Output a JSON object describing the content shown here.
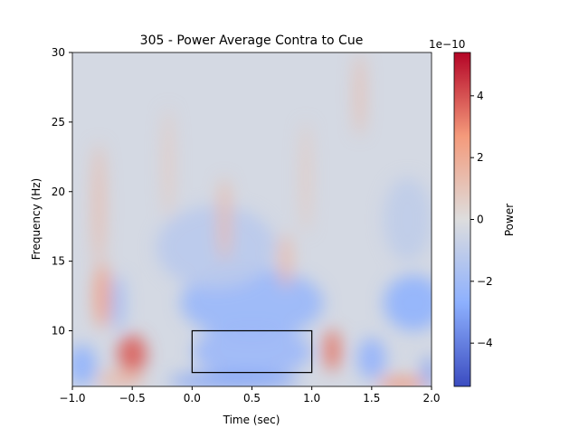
{
  "chart_data": {
    "type": "heatmap",
    "title": "305 - Power Average Contra to Cue",
    "xlabel": "Time (sec)",
    "ylabel": "Frequency (Hz)",
    "xlim": [
      -1.0,
      2.0
    ],
    "ylim": [
      6,
      30
    ],
    "xticks": [
      -1.0,
      -0.5,
      0.0,
      0.5,
      1.0,
      1.5,
      2.0
    ],
    "xtick_labels": [
      "−1.0",
      "−0.5",
      "0.0",
      "0.5",
      "1.0",
      "1.5",
      "2.0"
    ],
    "yticks": [
      10,
      15,
      20,
      25,
      30
    ],
    "ytick_labels": [
      "10",
      "15",
      "20",
      "25",
      "30"
    ],
    "colormap": "coolwarm",
    "colorbar": {
      "label": "Power",
      "offset_label": "1e−10",
      "range": [
        -5.4,
        5.4
      ],
      "ticks": [
        -4,
        -2,
        0,
        2,
        4
      ],
      "tick_labels": [
        "−4",
        "−2",
        "0",
        "2",
        "4"
      ]
    },
    "roi_box": {
      "time": [
        0.0,
        1.0
      ],
      "freq": [
        7,
        10
      ]
    },
    "blobs_approx_1e-10": [
      {
        "t": 0.5,
        "f": 12,
        "amp": -2.3,
        "st": 0.6,
        "sf": 2.5
      },
      {
        "t": 0.5,
        "f": 8.5,
        "amp": -2.2,
        "st": 0.5,
        "sf": 1.8
      },
      {
        "t": 0.35,
        "f": 6.4,
        "amp": -3.0,
        "st": 0.55,
        "sf": 0.6
      },
      {
        "t": 1.85,
        "f": 12,
        "amp": -2.6,
        "st": 0.25,
        "sf": 2.0
      },
      {
        "t": -0.92,
        "f": 7.5,
        "amp": -2.6,
        "st": 0.12,
        "sf": 1.5
      },
      {
        "t": -0.62,
        "f": 12,
        "amp": -2.0,
        "st": 0.06,
        "sf": 2.0
      },
      {
        "t": 1.5,
        "f": 8,
        "amp": -2.5,
        "st": 0.12,
        "sf": 1.5
      },
      {
        "t": 0.2,
        "f": 16,
        "amp": -1.2,
        "st": 0.5,
        "sf": 3
      },
      {
        "t": 1.8,
        "f": 18,
        "amp": -1.0,
        "st": 0.2,
        "sf": 3
      },
      {
        "t": 1.98,
        "f": 7,
        "amp": -3.2,
        "st": 0.05,
        "sf": 1.2
      },
      {
        "t": -0.5,
        "f": 8.3,
        "amp": 3.8,
        "st": 0.12,
        "sf": 1.4
      },
      {
        "t": -0.75,
        "f": 12.5,
        "amp": 2.4,
        "st": 0.07,
        "sf": 2.3
      },
      {
        "t": -0.78,
        "f": 19,
        "amp": 1.3,
        "st": 0.05,
        "sf": 4.5
      },
      {
        "t": -0.6,
        "f": 6.5,
        "amp": 1.4,
        "st": 0.2,
        "sf": 0.6
      },
      {
        "t": 1.17,
        "f": 8.6,
        "amp": 3.4,
        "st": 0.07,
        "sf": 1.5
      },
      {
        "t": 1.75,
        "f": 6.2,
        "amp": 2.8,
        "st": 0.2,
        "sf": 0.45
      },
      {
        "t": 0.27,
        "f": 18,
        "amp": 1.4,
        "st": 0.05,
        "sf": 3
      },
      {
        "t": 0.78,
        "f": 15,
        "amp": 1.5,
        "st": 0.05,
        "sf": 2
      },
      {
        "t": 1.4,
        "f": 27,
        "amp": 1.3,
        "st": 0.04,
        "sf": 3
      },
      {
        "t": -0.2,
        "f": 22,
        "amp": 0.8,
        "st": 0.04,
        "sf": 4
      },
      {
        "t": 0.95,
        "f": 21,
        "amp": 0.8,
        "st": 0.04,
        "sf": 4
      }
    ]
  }
}
